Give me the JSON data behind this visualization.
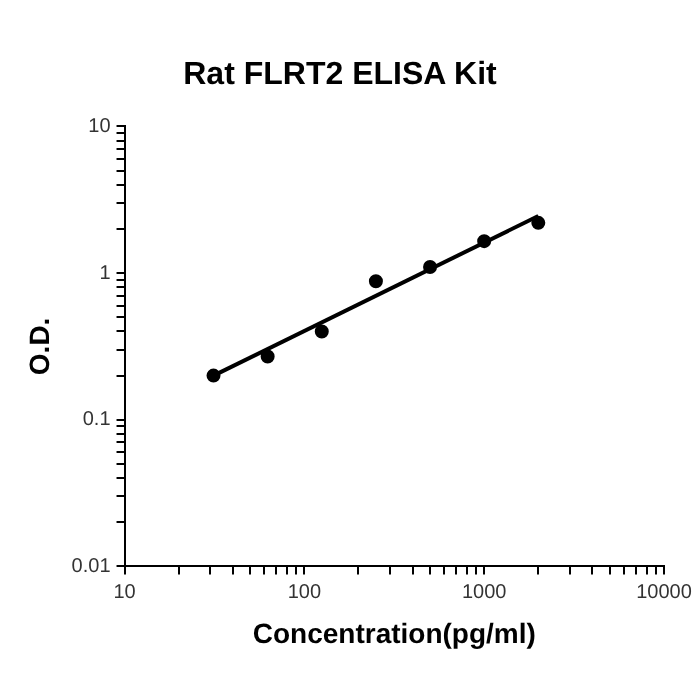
{
  "chart_data": {
    "type": "scatter",
    "title": "Rat FLRT2 ELISA Kit",
    "xlabel": "Concentration(pg/ml)",
    "ylabel": "O.D.",
    "log": "xy",
    "grid": false,
    "legend": false,
    "marker": "circle",
    "xlim": [
      10,
      10000
    ],
    "ylim": [
      0.01,
      10
    ],
    "xticks": [
      10,
      {
        "value": 20,
        "label": null
      },
      {
        "value": 30,
        "label": null
      },
      {
        "value": 40,
        "label": null
      },
      {
        "value": 50,
        "label": null
      },
      {
        "value": 60,
        "label": null
      },
      {
        "value": 70,
        "label": null
      },
      {
        "value": 80,
        "label": null
      },
      {
        "value": 90,
        "label": null
      },
      100,
      {
        "value": 200,
        "label": null
      },
      {
        "value": 300,
        "label": null
      },
      {
        "value": 400,
        "label": null
      },
      {
        "value": 500,
        "label": null
      },
      {
        "value": 600,
        "label": null
      },
      {
        "value": 700,
        "label": null
      },
      {
        "value": 800,
        "label": null
      },
      {
        "value": 900,
        "label": null
      },
      1000,
      {
        "value": 2000,
        "label": null
      },
      {
        "value": 3000,
        "label": null
      },
      {
        "value": 4000,
        "label": null
      },
      {
        "value": 5000,
        "label": null
      },
      {
        "value": 6000,
        "label": null
      },
      {
        "value": 7000,
        "label": null
      },
      {
        "value": 8000,
        "label": null
      },
      {
        "value": 9000,
        "label": null
      },
      10000
    ],
    "yticks": [
      0.01,
      {
        "value": 0.02,
        "label": null
      },
      {
        "value": 0.03,
        "label": null
      },
      {
        "value": 0.04,
        "label": null
      },
      {
        "value": 0.05,
        "label": null
      },
      {
        "value": 0.06,
        "label": null
      },
      {
        "value": 0.07,
        "label": null
      },
      {
        "value": 0.08,
        "label": null
      },
      {
        "value": 0.09,
        "label": null
      },
      0.1,
      {
        "value": 0.2,
        "label": null
      },
      {
        "value": 0.3,
        "label": null
      },
      {
        "value": 0.4,
        "label": null
      },
      {
        "value": 0.5,
        "label": null
      },
      {
        "value": 0.6,
        "label": null
      },
      {
        "value": 0.7,
        "label": null
      },
      {
        "value": 0.8,
        "label": null
      },
      {
        "value": 0.9,
        "label": null
      },
      1,
      {
        "value": 2,
        "label": null
      },
      {
        "value": 3,
        "label": null
      },
      {
        "value": 4,
        "label": null
      },
      {
        "value": 5,
        "label": null
      },
      {
        "value": 6,
        "label": null
      },
      {
        "value": 7,
        "label": null
      },
      {
        "value": 8,
        "label": null
      },
      {
        "value": 9,
        "label": null
      },
      10
    ],
    "series": [
      {
        "color": "#000000",
        "x": [
          31.25,
          62.5,
          125,
          250,
          500,
          1000,
          2000
        ],
        "values": [
          0.2,
          0.27,
          0.4,
          0.88,
          1.1,
          1.65,
          2.2
        ]
      },
      {
        "type": "line",
        "color": "#000000",
        "marker": "none",
        "x": [
          31.25,
          2000
        ],
        "values": [
          0.2,
          2.45
        ]
      }
    ]
  }
}
